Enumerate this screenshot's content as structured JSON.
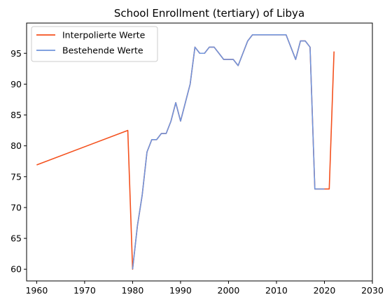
{
  "chart_data": {
    "type": "line",
    "title": "School Enrollment (tertiary) of Libya",
    "xlabel": "",
    "ylabel": "",
    "xlim": [
      1957.9,
      2030
    ],
    "ylim": [
      58.1,
      99.9
    ],
    "xticks": [
      1960,
      1970,
      1980,
      1990,
      2000,
      2010,
      2020,
      2030
    ],
    "yticks": [
      60,
      65,
      70,
      75,
      80,
      85,
      90,
      95
    ],
    "grid": false,
    "legend_position": "top-left",
    "series": [
      {
        "name": "Interpolierte Werte",
        "color": "#f4511e",
        "x": [
          1960,
          1979,
          1980,
          1981,
          1982,
          1983,
          1984,
          1985,
          1986,
          1987,
          1988,
          1989,
          1990,
          1991,
          1992,
          1993,
          1994,
          1995,
          1996,
          1997,
          1998,
          1999,
          2000,
          2001,
          2002,
          2003,
          2004,
          2005,
          2006,
          2007,
          2008,
          2009,
          2010,
          2011,
          2012,
          2013,
          2014,
          2015,
          2016,
          2017,
          2018,
          2019,
          2020,
          2021,
          2022
        ],
        "y": [
          76.9,
          82.5,
          60,
          67,
          72,
          79,
          81,
          81,
          82,
          82,
          84,
          87,
          84,
          87,
          90,
          96,
          95,
          95,
          96,
          96,
          95,
          94,
          94,
          94,
          93,
          95,
          97,
          98,
          98,
          98,
          98,
          98,
          98,
          98,
          98,
          96,
          94,
          97,
          97,
          96,
          73,
          73,
          73,
          73,
          95.3
        ]
      },
      {
        "name": "Bestehende Werte",
        "color": "#6f94dc",
        "x": [
          1980,
          1981,
          1982,
          1983,
          1984,
          1985,
          1986,
          1987,
          1988,
          1989,
          1990,
          1991,
          1992,
          1993,
          1994,
          1995,
          1996,
          1997,
          1998,
          1999,
          2000,
          2001,
          2002,
          2003,
          2004,
          2005,
          2006,
          2007,
          2008,
          2009,
          2010,
          2011,
          2012,
          2013,
          2014,
          2015,
          2016,
          2017,
          2018,
          2019,
          2020
        ],
        "y": [
          60,
          67,
          72,
          79,
          81,
          81,
          82,
          82,
          84,
          87,
          84,
          87,
          90,
          96,
          95,
          95,
          96,
          96,
          95,
          94,
          94,
          94,
          93,
          95,
          97,
          98,
          98,
          98,
          98,
          98,
          98,
          98,
          98,
          96,
          94,
          97,
          97,
          96,
          73,
          73,
          73
        ]
      }
    ]
  }
}
